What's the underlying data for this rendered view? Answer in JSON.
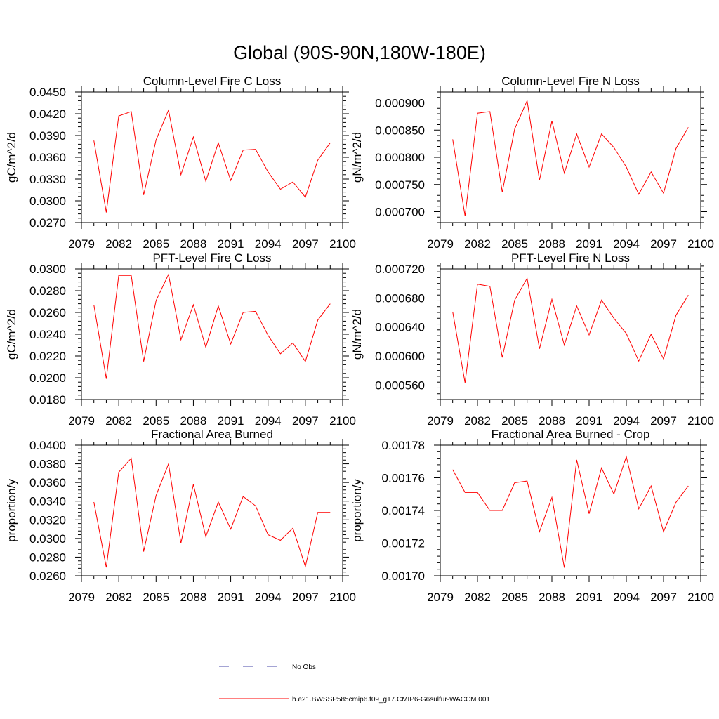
{
  "page_title": "Global (90S-90N,180W-180E)",
  "legend": {
    "entries": [
      {
        "label": "No Obs",
        "color": "#4a4aa8",
        "dash": true
      },
      {
        "label": "b.e21.BWSSP585cmip6.f09_g17.CMIP6-G6sulfur-WACCM.001",
        "color": "#ff0000",
        "dash": false
      }
    ]
  },
  "chart_data": [
    {
      "type": "line",
      "title": "Column-Level Fire C Loss",
      "ylabel": "gC/m^2/d",
      "xlabel": "",
      "xlim": [
        2079,
        2100
      ],
      "ylim": [
        0.027,
        0.045
      ],
      "x_ticks": [
        "2079",
        "2082",
        "2085",
        "2088",
        "2091",
        "2094",
        "2097",
        "2100"
      ],
      "y_ticks": [
        "0.0270",
        "0.0300",
        "0.0330",
        "0.0360",
        "0.0390",
        "0.0420",
        "0.0450"
      ],
      "x": [
        2080,
        2081,
        2082,
        2083,
        2084,
        2085,
        2086,
        2087,
        2088,
        2089,
        2090,
        2091,
        2092,
        2093,
        2094,
        2095,
        2096,
        2097,
        2098,
        2099
      ],
      "series": [
        {
          "color": "#ff0000",
          "values": [
            0.0383,
            0.0284,
            0.0417,
            0.0423,
            0.0308,
            0.0384,
            0.0425,
            0.0336,
            0.0388,
            0.0327,
            0.038,
            0.0328,
            0.037,
            0.0371,
            0.034,
            0.0316,
            0.0326,
            0.0305,
            0.0356,
            0.038
          ]
        }
      ]
    },
    {
      "type": "line",
      "title": "Column-Level Fire N Loss",
      "ylabel": "gN/m^2/d",
      "xlabel": "",
      "xlim": [
        2079,
        2100
      ],
      "ylim": [
        0.00068,
        0.00092
      ],
      "x_ticks": [
        "2079",
        "2082",
        "2085",
        "2088",
        "2091",
        "2094",
        "2097",
        "2100"
      ],
      "y_ticks": [
        "0.000700",
        "0.000750",
        "0.000800",
        "0.000850",
        "0.000900"
      ],
      "x": [
        2080,
        2081,
        2082,
        2083,
        2084,
        2085,
        2086,
        2087,
        2088,
        2089,
        2090,
        2091,
        2092,
        2093,
        2094,
        2095,
        2096,
        2097,
        2098,
        2099
      ],
      "series": [
        {
          "color": "#ff0000",
          "values": [
            0.000833,
            0.000692,
            0.000881,
            0.000884,
            0.000736,
            0.000852,
            0.000904,
            0.000758,
            0.000867,
            0.000771,
            0.000843,
            0.000782,
            0.000843,
            0.000818,
            0.000782,
            0.000732,
            0.000773,
            0.000734,
            0.000816,
            0.000855
          ]
        }
      ]
    },
    {
      "type": "line",
      "title": "PFT-Level Fire C Loss",
      "ylabel": "gC/m^2/d",
      "xlabel": "",
      "xlim": [
        2079,
        2100
      ],
      "ylim": [
        0.018,
        0.03
      ],
      "x_ticks": [
        "2079",
        "2082",
        "2085",
        "2088",
        "2091",
        "2094",
        "2097",
        "2100"
      ],
      "y_ticks": [
        "0.0180",
        "0.0200",
        "0.0220",
        "0.0240",
        "0.0260",
        "0.0280",
        "0.0300"
      ],
      "x": [
        2080,
        2081,
        2082,
        2083,
        2084,
        2085,
        2086,
        2087,
        2088,
        2089,
        2090,
        2091,
        2092,
        2093,
        2094,
        2095,
        2096,
        2097,
        2098,
        2099
      ],
      "series": [
        {
          "color": "#ff0000",
          "values": [
            0.0267,
            0.0199,
            0.0294,
            0.0294,
            0.0215,
            0.0271,
            0.0295,
            0.0235,
            0.0267,
            0.0228,
            0.0266,
            0.0231,
            0.026,
            0.0261,
            0.0239,
            0.0222,
            0.0232,
            0.0215,
            0.0253,
            0.0268
          ]
        }
      ]
    },
    {
      "type": "line",
      "title": "PFT-Level Fire N Loss",
      "ylabel": "gN/m^2/d",
      "xlabel": "",
      "xlim": [
        2079,
        2100
      ],
      "ylim": [
        0.00054,
        0.00072
      ],
      "x_ticks": [
        "2079",
        "2082",
        "2085",
        "2088",
        "2091",
        "2094",
        "2097",
        "2100"
      ],
      "y_ticks": [
        "0.000560",
        "0.000600",
        "0.000640",
        "0.000680",
        "0.000720"
      ],
      "x": [
        2080,
        2081,
        2082,
        2083,
        2084,
        2085,
        2086,
        2087,
        2088,
        2089,
        2090,
        2091,
        2092,
        2093,
        2094,
        2095,
        2096,
        2097,
        2098,
        2099
      ],
      "series": [
        {
          "color": "#ff0000",
          "values": [
            0.000661,
            0.000563,
            0.000699,
            0.000696,
            0.000598,
            0.000677,
            0.000707,
            0.00061,
            0.000678,
            0.000615,
            0.000669,
            0.000629,
            0.000677,
            0.000652,
            0.000631,
            0.000593,
            0.00063,
            0.000596,
            0.000656,
            0.000684
          ]
        }
      ]
    },
    {
      "type": "line",
      "title": "Fractional Area Burned",
      "ylabel": "proportion/y",
      "xlabel": "",
      "xlim": [
        2079,
        2100
      ],
      "ylim": [
        0.026,
        0.04
      ],
      "x_ticks": [
        "2079",
        "2082",
        "2085",
        "2088",
        "2091",
        "2094",
        "2097",
        "2100"
      ],
      "y_ticks": [
        "0.0260",
        "0.0280",
        "0.0300",
        "0.0320",
        "0.0340",
        "0.0360",
        "0.0380",
        "0.0400"
      ],
      "x": [
        2080,
        2081,
        2082,
        2083,
        2084,
        2085,
        2086,
        2087,
        2088,
        2089,
        2090,
        2091,
        2092,
        2093,
        2094,
        2095,
        2096,
        2097,
        2098,
        2099
      ],
      "series": [
        {
          "color": "#ff0000",
          "values": [
            0.0339,
            0.0269,
            0.0371,
            0.0386,
            0.0286,
            0.0346,
            0.038,
            0.0295,
            0.0358,
            0.0302,
            0.0339,
            0.031,
            0.0345,
            0.0335,
            0.0304,
            0.0298,
            0.0311,
            0.027,
            0.0328,
            0.0328
          ]
        }
      ]
    },
    {
      "type": "line",
      "title": "Fractional Area Burned - Crop",
      "ylabel": "proportion/y",
      "xlabel": "",
      "xlim": [
        2079,
        2100
      ],
      "ylim": [
        0.0017,
        0.00178
      ],
      "x_ticks": [
        "2079",
        "2082",
        "2085",
        "2088",
        "2091",
        "2094",
        "2097",
        "2100"
      ],
      "y_ticks": [
        "0.00170",
        "0.00172",
        "0.00174",
        "0.00176",
        "0.00178"
      ],
      "x": [
        2080,
        2081,
        2082,
        2083,
        2084,
        2085,
        2086,
        2087,
        2088,
        2089,
        2090,
        2091,
        2092,
        2093,
        2094,
        2095,
        2096,
        2097,
        2098,
        2099
      ],
      "series": [
        {
          "color": "#ff0000",
          "values": [
            0.001765,
            0.001751,
            0.001751,
            0.00174,
            0.00174,
            0.001757,
            0.001758,
            0.001727,
            0.001748,
            0.001705,
            0.001771,
            0.001738,
            0.001766,
            0.00175,
            0.001773,
            0.001741,
            0.001755,
            0.001727,
            0.001745,
            0.001755
          ]
        }
      ]
    }
  ]
}
